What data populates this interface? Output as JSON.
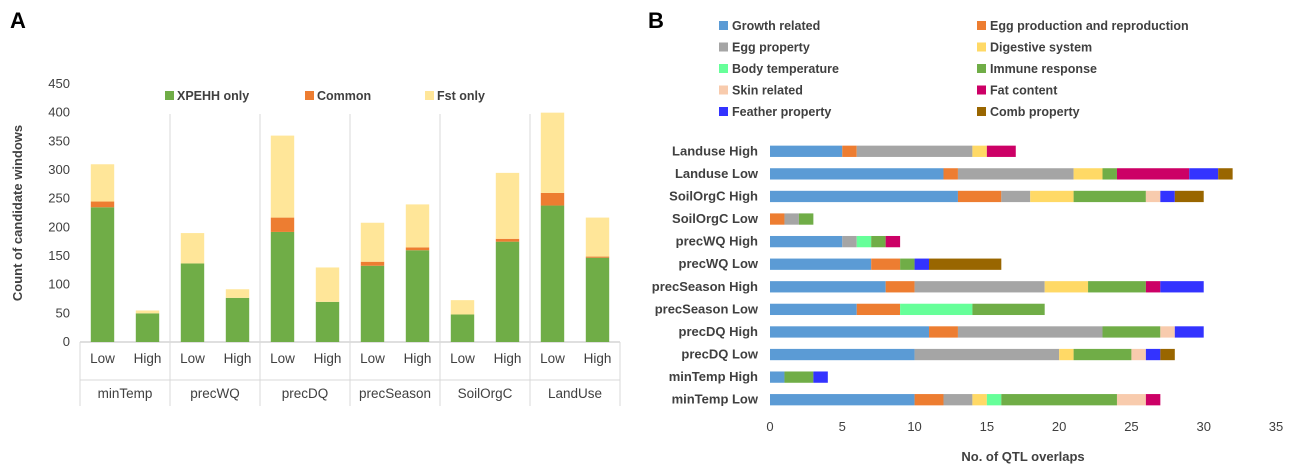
{
  "chart_data": [
    {
      "panel": "A",
      "type": "bar",
      "stacked": true,
      "ylabel": "Count of candidate windows",
      "ylim": [
        0,
        450
      ],
      "yticks": [
        0,
        50,
        100,
        150,
        200,
        250,
        300,
        350,
        400,
        450
      ],
      "groups": [
        "minTemp",
        "precWQ",
        "precDQ",
        "precSeason",
        "SoilOrgC",
        "LandUse"
      ],
      "subcategories": [
        "Low",
        "High"
      ],
      "legend_position": "top",
      "series": [
        {
          "name": "XPEHH only",
          "color": "#70ad47",
          "values": [
            235,
            50,
            137,
            77,
            192,
            70,
            133,
            160,
            48,
            175,
            238,
            147
          ]
        },
        {
          "name": "Common",
          "color": "#ed7d31",
          "values": [
            10,
            0,
            0,
            0,
            25,
            0,
            7,
            5,
            0,
            5,
            22,
            2
          ]
        },
        {
          "name": "Fst only",
          "color": "#ffe699",
          "values": [
            65,
            5,
            53,
            15,
            143,
            60,
            68,
            75,
            25,
            115,
            140,
            68
          ]
        }
      ]
    },
    {
      "panel": "B",
      "type": "bar",
      "orientation": "horizontal",
      "stacked": true,
      "xlabel": "No. of QTL overlaps",
      "xlim": [
        0,
        35
      ],
      "xticks": [
        0,
        5,
        10,
        15,
        20,
        25,
        30,
        35
      ],
      "legend_position": "top",
      "categories": [
        "Landuse High",
        "Landuse Low",
        "SoilOrgC High",
        "SoilOrgC Low",
        "precWQ High",
        "precWQ Low",
        "precSeason High",
        "precSeason Low",
        "precDQ High",
        "precDQ Low",
        "minTemp High",
        "minTemp Low"
      ],
      "series": [
        {
          "name": "Growth related",
          "color": "#5b9bd5",
          "values": [
            5,
            12,
            13,
            0,
            5,
            7,
            8,
            6,
            11,
            10,
            1,
            10
          ]
        },
        {
          "name": "Egg production and reproduction",
          "color": "#ed7d31",
          "values": [
            1,
            1,
            3,
            1,
            0,
            2,
            2,
            3,
            2,
            0,
            0,
            2
          ]
        },
        {
          "name": "Egg property",
          "color": "#a5a5a5",
          "values": [
            8,
            8,
            2,
            1,
            1,
            0,
            9,
            0,
            10,
            10,
            0,
            2
          ]
        },
        {
          "name": "Digestive system",
          "color": "#ffd966",
          "values": [
            1,
            2,
            3,
            0,
            0,
            0,
            3,
            0,
            0,
            1,
            0,
            1
          ]
        },
        {
          "name": "Body temperature",
          "color": "#66ff99",
          "values": [
            0,
            0,
            0,
            0,
            1,
            0,
            0,
            5,
            0,
            0,
            0,
            1
          ]
        },
        {
          "name": "Immune response",
          "color": "#70ad47",
          "values": [
            0,
            1,
            5,
            1,
            1,
            1,
            4,
            5,
            4,
            4,
            2,
            8
          ]
        },
        {
          "name": "Skin related",
          "color": "#f8cbad",
          "values": [
            0,
            0,
            1,
            0,
            0,
            0,
            0,
            0,
            1,
            1,
            0,
            2
          ]
        },
        {
          "name": "Fat content",
          "color": "#cc0066",
          "values": [
            2,
            5,
            0,
            0,
            1,
            0,
            1,
            0,
            0,
            0,
            0,
            1
          ]
        },
        {
          "name": "Feather property",
          "color": "#3333ff",
          "values": [
            0,
            2,
            1,
            0,
            0,
            1,
            3,
            0,
            2,
            1,
            1,
            0
          ]
        },
        {
          "name": "Comb property",
          "color": "#996600",
          "values": [
            0,
            1,
            2,
            0,
            0,
            5,
            0,
            0,
            0,
            1,
            0,
            0
          ]
        }
      ]
    }
  ]
}
